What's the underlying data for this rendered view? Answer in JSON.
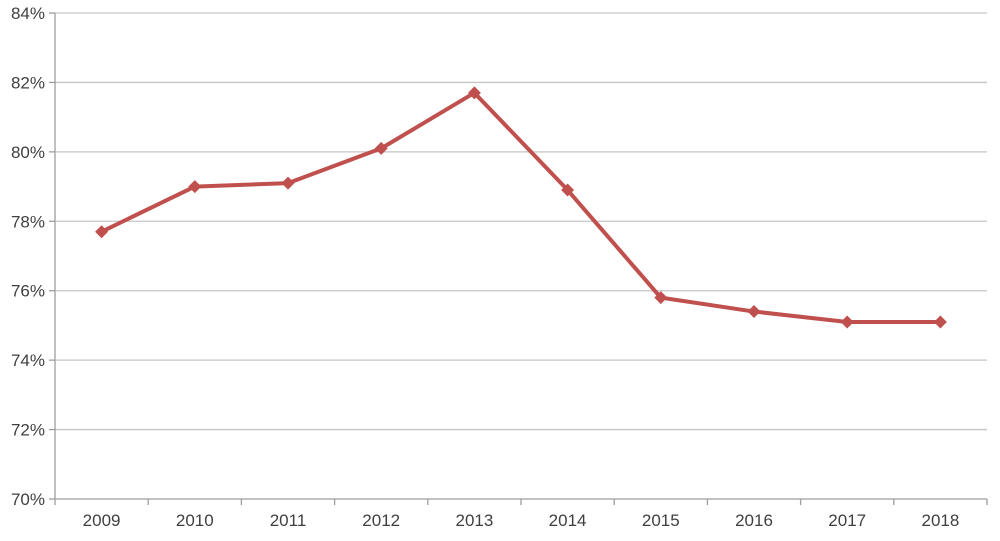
{
  "chart_data": {
    "type": "line",
    "title": "",
    "xlabel": "",
    "ylabel": "",
    "categories": [
      "2009",
      "2010",
      "2011",
      "2012",
      "2013",
      "2014",
      "2015",
      "2016",
      "2017",
      "2018"
    ],
    "series": [
      {
        "name": "percentage-series",
        "values": [
          77.7,
          79.0,
          79.1,
          80.1,
          81.7,
          78.9,
          75.8,
          75.4,
          75.1,
          75.1
        ]
      }
    ],
    "ylim": [
      70,
      84
    ],
    "y_ticks": [
      {
        "value": 70,
        "label": "70%"
      },
      {
        "value": 72,
        "label": "72%"
      },
      {
        "value": 74,
        "label": "74%"
      },
      {
        "value": 76,
        "label": "76%"
      },
      {
        "value": 78,
        "label": "78%"
      },
      {
        "value": 80,
        "label": "80%"
      },
      {
        "value": 82,
        "label": "82%"
      },
      {
        "value": 84,
        "label": "84%"
      }
    ],
    "grid": true,
    "legend": false,
    "legend_position": "none",
    "marker": "diamond",
    "colors": {
      "series": "#C0504D",
      "gridline": "#C6C6C6",
      "axis": "#9E9E9E",
      "tick_label": "#3F3F3F",
      "background": "#FFFFFF"
    }
  }
}
